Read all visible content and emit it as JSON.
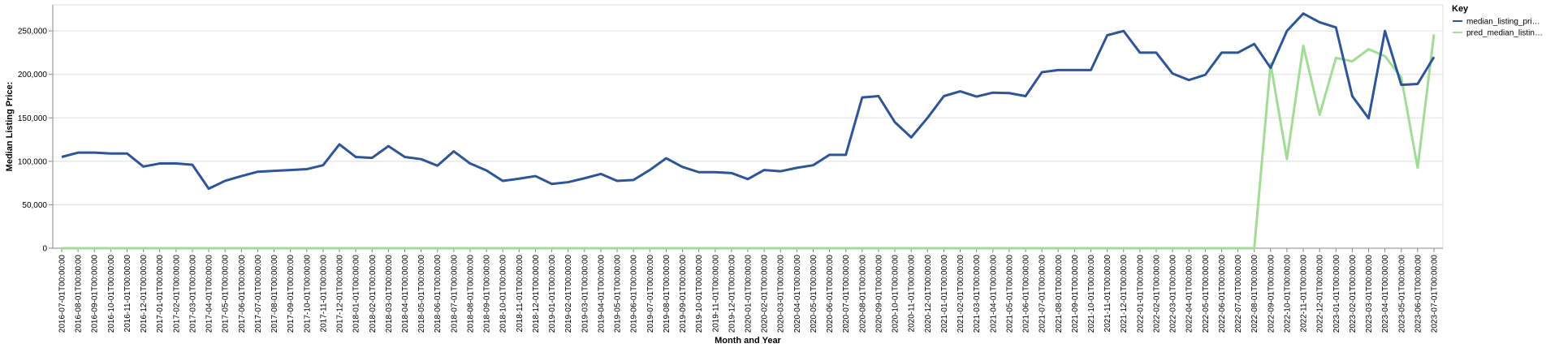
{
  "chart_data": {
    "type": "line",
    "xlabel": "Month and Year",
    "ylabel": "Median Listing Price:",
    "ylim": [
      0,
      280000
    ],
    "yticks": [
      0,
      50000,
      100000,
      150000,
      200000,
      250000
    ],
    "ytick_labels": [
      "0",
      "50,000",
      "100,000",
      "150,000",
      "200,000",
      "250,000"
    ],
    "grid": true,
    "legend_position": "top-right",
    "legend_title": "Key",
    "x": [
      "2016-07-01T00:00:00",
      "2016-08-01T00:00:00",
      "2016-09-01T00:00:00",
      "2016-10-01T00:00:00",
      "2016-11-01T00:00:00",
      "2016-12-01T00:00:00",
      "2017-01-01T00:00:00",
      "2017-02-01T00:00:00",
      "2017-03-01T00:00:00",
      "2017-04-01T00:00:00",
      "2017-05-01T00:00:00",
      "2017-06-01T00:00:00",
      "2017-07-01T00:00:00",
      "2017-08-01T00:00:00",
      "2017-09-01T00:00:00",
      "2017-10-01T00:00:00",
      "2017-11-01T00:00:00",
      "2017-12-01T00:00:00",
      "2018-01-01T00:00:00",
      "2018-02-01T00:00:00",
      "2018-03-01T00:00:00",
      "2018-04-01T00:00:00",
      "2018-05-01T00:00:00",
      "2018-06-01T00:00:00",
      "2018-07-01T00:00:00",
      "2018-08-01T00:00:00",
      "2018-09-01T00:00:00",
      "2018-10-01T00:00:00",
      "2018-11-01T00:00:00",
      "2018-12-01T00:00:00",
      "2019-01-01T00:00:00",
      "2019-02-01T00:00:00",
      "2019-03-01T00:00:00",
      "2019-04-01T00:00:00",
      "2019-05-01T00:00:00",
      "2019-06-01T00:00:00",
      "2019-07-01T00:00:00",
      "2019-08-01T00:00:00",
      "2019-09-01T00:00:00",
      "2019-10-01T00:00:00",
      "2019-11-01T00:00:00",
      "2019-12-01T00:00:00",
      "2020-01-01T00:00:00",
      "2020-02-01T00:00:00",
      "2020-03-01T00:00:00",
      "2020-04-01T00:00:00",
      "2020-05-01T00:00:00",
      "2020-06-01T00:00:00",
      "2020-07-01T00:00:00",
      "2020-08-01T00:00:00",
      "2020-09-01T00:00:00",
      "2020-10-01T00:00:00",
      "2020-11-01T00:00:00",
      "2020-12-01T00:00:00",
      "2021-01-01T00:00:00",
      "2021-02-01T00:00:00",
      "2021-03-01T00:00:00",
      "2021-04-01T00:00:00",
      "2021-05-01T00:00:00",
      "2021-06-01T00:00:00",
      "2021-07-01T00:00:00",
      "2021-08-01T00:00:00",
      "2021-09-01T00:00:00",
      "2021-10-01T00:00:00",
      "2021-11-01T00:00:00",
      "2021-12-01T00:00:00",
      "2022-01-01T00:00:00",
      "2022-02-01T00:00:00",
      "2022-03-01T00:00:00",
      "2022-04-01T00:00:00",
      "2022-05-01T00:00:00",
      "2022-06-01T00:00:00",
      "2022-07-01T00:00:00",
      "2022-08-01T00:00:00",
      "2022-09-01T00:00:00",
      "2022-10-01T00:00:00",
      "2022-11-01T00:00:00",
      "2022-12-01T00:00:00",
      "2023-01-01T00:00:00",
      "2023-02-01T00:00:00",
      "2023-03-01T00:00:00",
      "2023-04-01T00:00:00",
      "2023-05-01T00:00:00",
      "2023-06-01T00:00:00",
      "2023-07-01T00:00:00"
    ],
    "series": [
      {
        "name": "median_listing_pri…",
        "color": "#2c559c",
        "values": [
          105000,
          110000,
          110000,
          109000,
          109000,
          94000,
          97500,
          97500,
          96000,
          68500,
          77500,
          83000,
          88000,
          89000,
          90000,
          91000,
          95500,
          119500,
          105000,
          104000,
          117500,
          105000,
          102500,
          95000,
          111500,
          97500,
          89500,
          77500,
          80000,
          83000,
          74000,
          76000,
          80500,
          85500,
          77500,
          78500,
          90000,
          103500,
          93500,
          87500,
          87500,
          86500,
          79500,
          90000,
          88500,
          92500,
          95500,
          107500,
          107500,
          173500,
          175000,
          145000,
          127500,
          150000,
          175000,
          180500,
          174500,
          179000,
          178500,
          175000,
          202500,
          205000,
          205000,
          205000,
          245000,
          250000,
          225000,
          225000,
          201000,
          193500,
          199500,
          225000,
          225000,
          235000,
          207500,
          250000,
          270000,
          260000,
          254000,
          175000,
          149500,
          250000,
          188000,
          189000,
          220000
        ]
      },
      {
        "name": "pred_median_listin…",
        "color": "#a3dc96",
        "values": [
          0,
          0,
          0,
          0,
          0,
          0,
          0,
          0,
          0,
          0,
          0,
          0,
          0,
          0,
          0,
          0,
          0,
          0,
          0,
          0,
          0,
          0,
          0,
          0,
          0,
          0,
          0,
          0,
          0,
          0,
          0,
          0,
          0,
          0,
          0,
          0,
          0,
          0,
          0,
          0,
          0,
          0,
          0,
          0,
          0,
          0,
          0,
          0,
          0,
          0,
          0,
          0,
          0,
          0,
          0,
          0,
          0,
          0,
          0,
          0,
          0,
          0,
          0,
          0,
          0,
          0,
          0,
          0,
          0,
          0,
          0,
          0,
          0,
          0,
          212500,
          102500,
          233000,
          153500,
          219000,
          215000,
          229000,
          221000,
          196500,
          92500,
          246000
        ]
      }
    ]
  }
}
